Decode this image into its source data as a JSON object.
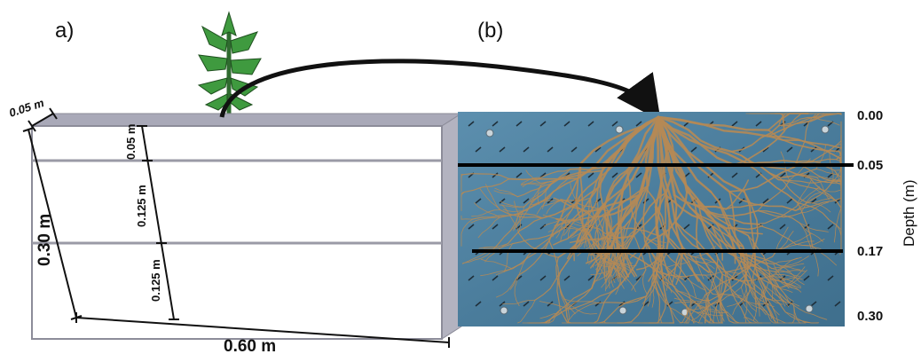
{
  "panel_a": {
    "label": "a)",
    "dimensions": {
      "thickness": "0.05 m",
      "height": "0.30 m",
      "width": "0.60 m",
      "layer_1": "0.05 m",
      "layer_2": "0.125 m",
      "layer_3": "0.125 m"
    }
  },
  "panel_b": {
    "label": "(b)",
    "depth_axis_label": "Depth (m)",
    "depth_ticks": [
      "0.00",
      "0.05",
      "0.17",
      "0.30"
    ]
  },
  "colors": {
    "board": "#4f7f9c",
    "roots": "#b58a55",
    "plant": "#3f9a3f",
    "box_edge": "#8c8c99"
  }
}
